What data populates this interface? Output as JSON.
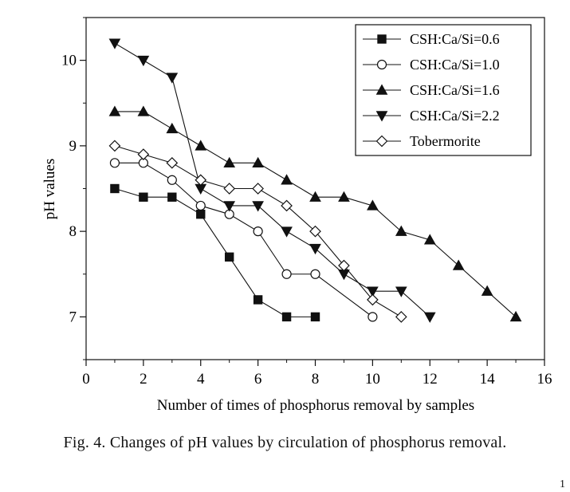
{
  "chart_data": {
    "type": "line",
    "title": "",
    "xlabel": "Number of times of phosphorus removal by samples",
    "ylabel": "pH values",
    "xlim": [
      0,
      16
    ],
    "ylim": [
      6.5,
      10.5
    ],
    "x_ticks": [
      0,
      2,
      4,
      6,
      8,
      10,
      12,
      14,
      16
    ],
    "y_ticks": [
      7,
      8,
      9,
      10
    ],
    "grid": false,
    "legend_position": "top-right",
    "series": [
      {
        "name": "CSH:Ca/Si=0.6",
        "marker": "filled-square",
        "x": [
          1,
          2,
          3,
          4,
          5,
          6,
          7,
          8
        ],
        "values": [
          8.5,
          8.4,
          8.4,
          8.2,
          7.7,
          7.2,
          7.0,
          7.0
        ]
      },
      {
        "name": "CSH:Ca/Si=1.0",
        "marker": "open-circle",
        "x": [
          1,
          2,
          3,
          4,
          5,
          6,
          7,
          8,
          10
        ],
        "values": [
          8.8,
          8.8,
          8.6,
          8.3,
          8.2,
          8.0,
          7.5,
          7.5,
          7.0
        ]
      },
      {
        "name": "CSH:Ca/Si=1.6",
        "marker": "filled-triangle-up",
        "x": [
          1,
          2,
          3,
          4,
          5,
          6,
          7,
          8,
          9,
          10,
          11,
          12,
          13,
          14,
          15
        ],
        "values": [
          9.4,
          9.4,
          9.2,
          9.0,
          8.8,
          8.8,
          8.6,
          8.4,
          8.4,
          8.3,
          8.0,
          7.9,
          7.6,
          7.3,
          7.0
        ]
      },
      {
        "name": "CSH:Ca/Si=2.2",
        "marker": "filled-triangle-down",
        "x": [
          1,
          2,
          3,
          4,
          5,
          6,
          7,
          8,
          9,
          10,
          11,
          12
        ],
        "values": [
          10.2,
          10.0,
          9.8,
          8.5,
          8.3,
          8.3,
          8.0,
          7.8,
          7.5,
          7.3,
          7.3,
          7.0
        ]
      },
      {
        "name": "Tobermorite",
        "marker": "open-diamond",
        "x": [
          1,
          2,
          3,
          4,
          5,
          6,
          7,
          8,
          9,
          10,
          11
        ],
        "values": [
          9.0,
          8.9,
          8.8,
          8.6,
          8.5,
          8.5,
          8.3,
          8.0,
          7.6,
          7.2,
          7.0
        ]
      }
    ]
  },
  "caption": "Fig. 4.  Changes of pH values by circulation of phosphorus removal.",
  "corner_mark": "1",
  "colors": {
    "ink": "#111111",
    "background": "#ffffff"
  }
}
